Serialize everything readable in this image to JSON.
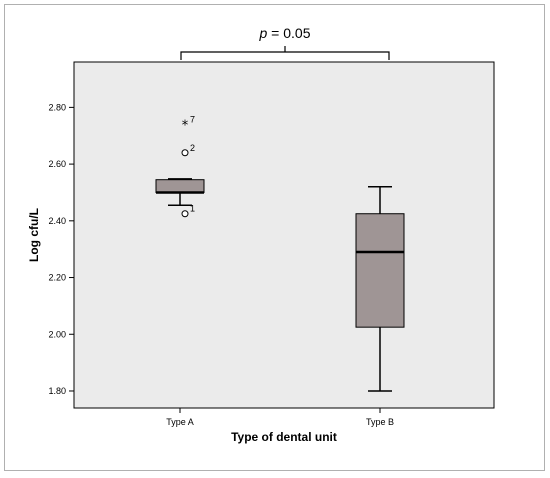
{
  "chart_data": {
    "type": "box",
    "xlabel": "Type of dental unit",
    "ylabel": "Log cfu/L",
    "ylim": [
      1.74,
      2.96
    ],
    "yticks": [
      "1.80",
      "2.00",
      "2.20",
      "2.40",
      "2.60",
      "2.80"
    ],
    "ytick_values": [
      1.8,
      2.0,
      2.2,
      2.4,
      2.6,
      2.8
    ],
    "categories": [
      "Type A",
      "Type B"
    ],
    "boxes": [
      {
        "name": "Type A",
        "whisker_low": 2.455,
        "q1": 2.5,
        "median": 2.5,
        "q3": 2.545,
        "whisker_high": 2.548,
        "outliers": [
          {
            "value": 2.74,
            "marker": "star",
            "label": "7"
          },
          {
            "value": 2.64,
            "marker": "circle",
            "label": "2"
          },
          {
            "value": 2.425,
            "marker": "circle",
            "label": "1"
          }
        ]
      },
      {
        "name": "Type B",
        "whisker_low": 1.8,
        "q1": 2.025,
        "median": 2.29,
        "q3": 2.425,
        "whisker_high": 2.52,
        "outliers": []
      }
    ],
    "annotation": {
      "text_italic": "p",
      "text_rest": " = 0.05"
    },
    "colors": {
      "plot_bg": "#ebebeb",
      "box_fill": "#9f9595",
      "box_stroke": "#000000"
    },
    "grid": false
  }
}
